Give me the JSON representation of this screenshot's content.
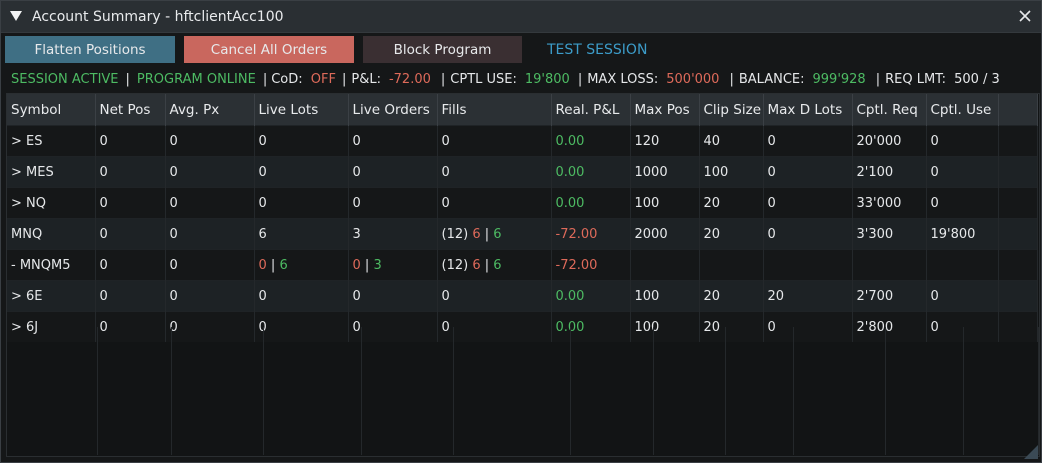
{
  "window": {
    "title": "Account Summary - hftclientAcc100"
  },
  "toolbar": {
    "flatten_label": "Flatten Positions",
    "cancel_label": "Cancel All Orders",
    "block_label": "Block Program",
    "session_label": "TEST SESSION"
  },
  "status": {
    "session": "SESSION ACTIVE",
    "program": "PROGRAM ONLINE",
    "cod_label": "CoD:",
    "cod_value": "OFF",
    "pnl_label": "P&L:",
    "pnl_value": "-72.00",
    "cptl_label": "CPTL USE:",
    "cptl_value": "19'800",
    "maxloss_label": "MAX LOSS:",
    "maxloss_value": "500'000",
    "balance_label": "BALANCE:",
    "balance_value": "999'928",
    "reqlmt_label": "REQ LMT:",
    "reqlmt_value": "500 / 3"
  },
  "table": {
    "headers": [
      "Symbol",
      "Net Pos",
      "Avg. Px",
      "Live Lots",
      "Live Orders",
      "Fills",
      "Real. P&L",
      "Max Pos",
      "Clip Size",
      "Max D Lots",
      "Cptl. Req",
      "Cptl. Use"
    ],
    "rows": [
      {
        "symbol": "> ES",
        "net": "0",
        "avg": "0",
        "lots": "0",
        "orders": "0",
        "fills": "0",
        "pnl": "0.00",
        "maxpos": "120",
        "clip": "40",
        "maxd": "0",
        "req": "20'000",
        "use": "0"
      },
      {
        "symbol": "> MES",
        "net": "0",
        "avg": "0",
        "lots": "0",
        "orders": "0",
        "fills": "0",
        "pnl": "0.00",
        "maxpos": "1000",
        "clip": "100",
        "maxd": "0",
        "req": "2'100",
        "use": "0"
      },
      {
        "symbol": "> NQ",
        "net": "0",
        "avg": "0",
        "lots": "0",
        "orders": "0",
        "fills": "0",
        "pnl": "0.00",
        "maxpos": "100",
        "clip": "20",
        "maxd": "0",
        "req": "33'000",
        "use": "0"
      },
      {
        "symbol": "MNQ",
        "net": "0",
        "avg": "0",
        "lots": "6",
        "orders": "3",
        "fills_count": "(12)",
        "fills_sell": "6",
        "fills_buy": "6",
        "pnl": "-72.00",
        "maxpos": "2000",
        "clip": "20",
        "maxd": "0",
        "req": "3'300",
        "use": "19'800"
      },
      {
        "symbol": "- MNQM5",
        "net": "0",
        "avg": "0",
        "lots_sell": "0",
        "lots_buy": "6",
        "orders_sell": "0",
        "orders_buy": "3",
        "fills_count": "(12)",
        "fills_sell": "6",
        "fills_buy": "6",
        "pnl": "-72.00",
        "maxpos": "",
        "clip": "",
        "maxd": "",
        "req": "",
        "use": ""
      },
      {
        "symbol": "> 6E",
        "net": "0",
        "avg": "0",
        "lots": "0",
        "orders": "0",
        "fills": "0",
        "pnl": "0.00",
        "maxpos": "100",
        "clip": "20",
        "maxd": "20",
        "req": "2'700",
        "use": "0"
      },
      {
        "symbol": "> 6J",
        "net": "0",
        "avg": "0",
        "lots": "0",
        "orders": "0",
        "fills": "0",
        "pnl": "0.00",
        "maxpos": "100",
        "clip": "20",
        "maxd": "0",
        "req": "2'800",
        "use": "0"
      }
    ],
    "divider": "|"
  },
  "icons": {
    "collapse": "collapse-triangle-icon",
    "close": "close-icon",
    "resize": "resize-grip-icon"
  },
  "colors": {
    "positive": "#4dbb63",
    "negative": "#de6a5a",
    "accent": "#3c9cc9"
  }
}
